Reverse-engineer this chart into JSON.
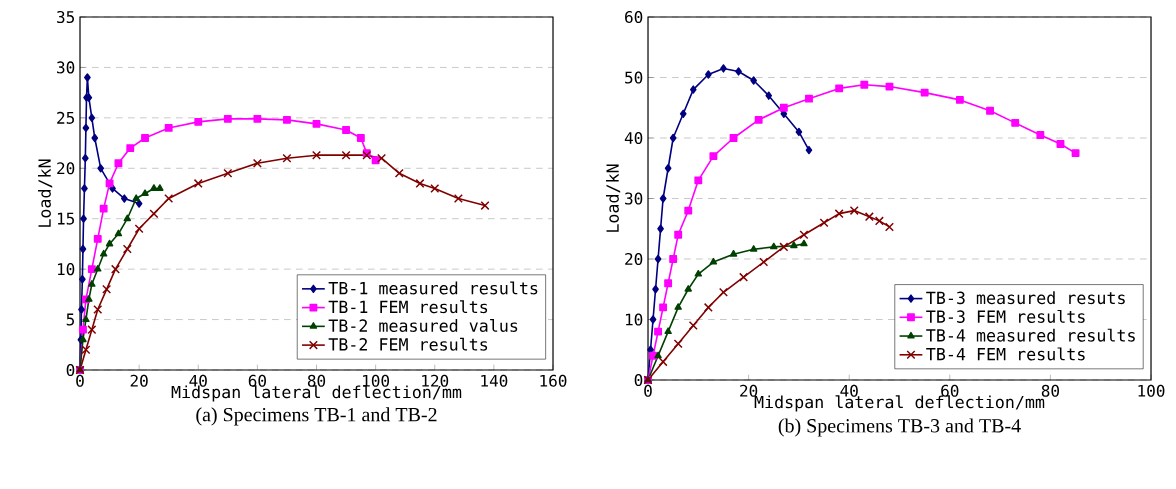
{
  "chart_data": [
    {
      "type": "line",
      "title": "(a) Specimens TB-1 and TB-2",
      "xlabel": "Midspan lateral deflection/mm",
      "ylabel": "Load/kN",
      "xlim": [
        0,
        160
      ],
      "ylim": [
        0,
        35
      ],
      "xticks": [
        0,
        20,
        40,
        60,
        80,
        100,
        120,
        140,
        160
      ],
      "yticks": [
        0,
        5,
        10,
        15,
        20,
        25,
        30,
        35
      ],
      "grid": "y",
      "legend": "bottom right",
      "line_style": "solid",
      "series": [
        {
          "name": "TB-1 measured results",
          "color": "#000080",
          "marker": "diamond",
          "x": [
            0,
            0.3,
            0.5,
            0.8,
            1,
            1.2,
            1.5,
            1.8,
            2,
            2.2,
            2.5,
            3,
            4,
            5,
            7,
            11,
            15,
            20
          ],
          "values": [
            0,
            3,
            6,
            9,
            12,
            15,
            18,
            21,
            24,
            27,
            29,
            27,
            25,
            23,
            20,
            18,
            17,
            16.5
          ]
        },
        {
          "name": "TB-1 FEM results",
          "color": "#ff00ff",
          "marker": "square",
          "x": [
            0,
            1,
            2,
            4,
            6,
            8,
            10,
            13,
            17,
            22,
            30,
            40,
            50,
            60,
            70,
            80,
            90,
            95,
            97,
            100
          ],
          "values": [
            0,
            4,
            7,
            10,
            13,
            16,
            18.5,
            20.5,
            22,
            23,
            24,
            24.6,
            24.9,
            24.9,
            24.8,
            24.4,
            23.8,
            23,
            21.5,
            20.8
          ]
        },
        {
          "name": "TB-2 measured valus",
          "color": "#004000",
          "marker": "triangle",
          "x": [
            0,
            1,
            2,
            3,
            4,
            6,
            8,
            10,
            13,
            16,
            19,
            22,
            25,
            27
          ],
          "values": [
            0,
            3,
            5,
            7,
            8.5,
            10,
            11.5,
            12.5,
            13.5,
            15,
            17,
            17.5,
            18,
            18
          ]
        },
        {
          "name": "TB-2 FEM results",
          "color": "#800000",
          "marker": "cross",
          "x": [
            0,
            2,
            4,
            6,
            9,
            12,
            16,
            20,
            25,
            30,
            40,
            50,
            60,
            70,
            80,
            90,
            97,
            102,
            108,
            115,
            120,
            128,
            137
          ],
          "values": [
            0,
            2,
            4,
            6,
            8,
            10,
            12,
            14,
            15.5,
            17,
            18.5,
            19.5,
            20.5,
            21,
            21.3,
            21.3,
            21.3,
            21,
            19.5,
            18.5,
            18,
            17,
            16.3
          ]
        }
      ]
    },
    {
      "type": "line",
      "title": "(b) Specimens TB-3 and TB-4",
      "xlabel": "Midspan lateral deflection/mm",
      "ylabel": "Load/kN",
      "xlim": [
        0,
        100
      ],
      "ylim": [
        0,
        60
      ],
      "xticks": [
        0,
        20,
        40,
        60,
        80,
        100
      ],
      "yticks": [
        0,
        10,
        20,
        30,
        40,
        50,
        60
      ],
      "grid": "y",
      "legend": "bottom right",
      "line_style": "solid",
      "series": [
        {
          "name": "TB-3 measured resuts",
          "color": "#000080",
          "marker": "diamond",
          "x": [
            0,
            0.5,
            1,
            1.5,
            2,
            2.5,
            3,
            4,
            5,
            7,
            9,
            12,
            15,
            18,
            21,
            24,
            27,
            30,
            32
          ],
          "values": [
            0,
            5,
            10,
            15,
            20,
            25,
            30,
            35,
            40,
            44,
            48,
            50.5,
            51.5,
            51,
            49.5,
            47,
            44,
            41,
            38
          ]
        },
        {
          "name": "TB-3 FEM results",
          "color": "#ff00ff",
          "marker": "square",
          "x": [
            0,
            1,
            2,
            3,
            4,
            5,
            6,
            8,
            10,
            13,
            17,
            22,
            27,
            32,
            38,
            43,
            48,
            55,
            62,
            68,
            73,
            78,
            82,
            85
          ],
          "values": [
            0,
            4,
            8,
            12,
            16,
            20,
            24,
            28,
            33,
            37,
            40,
            43,
            45,
            46.5,
            48.2,
            48.8,
            48.5,
            47.5,
            46.3,
            44.5,
            42.5,
            40.5,
            39,
            37.5
          ]
        },
        {
          "name": "TB-4 measured results",
          "color": "#004000",
          "marker": "triangle",
          "x": [
            0,
            2,
            4,
            6,
            8,
            10,
            13,
            17,
            21,
            25,
            29,
            31
          ],
          "values": [
            0,
            4,
            8,
            12,
            15,
            17.5,
            19.5,
            20.8,
            21.6,
            22,
            22.2,
            22.5
          ]
        },
        {
          "name": "TB-4 FEM results",
          "color": "#800000",
          "marker": "cross",
          "x": [
            0,
            3,
            6,
            9,
            12,
            15,
            19,
            23,
            27,
            31,
            35,
            38,
            41,
            44,
            46,
            48
          ],
          "values": [
            0,
            3,
            6,
            9,
            12,
            14.5,
            17,
            19.5,
            22,
            24,
            26,
            27.5,
            28,
            27,
            26.3,
            25.3
          ]
        }
      ]
    }
  ]
}
